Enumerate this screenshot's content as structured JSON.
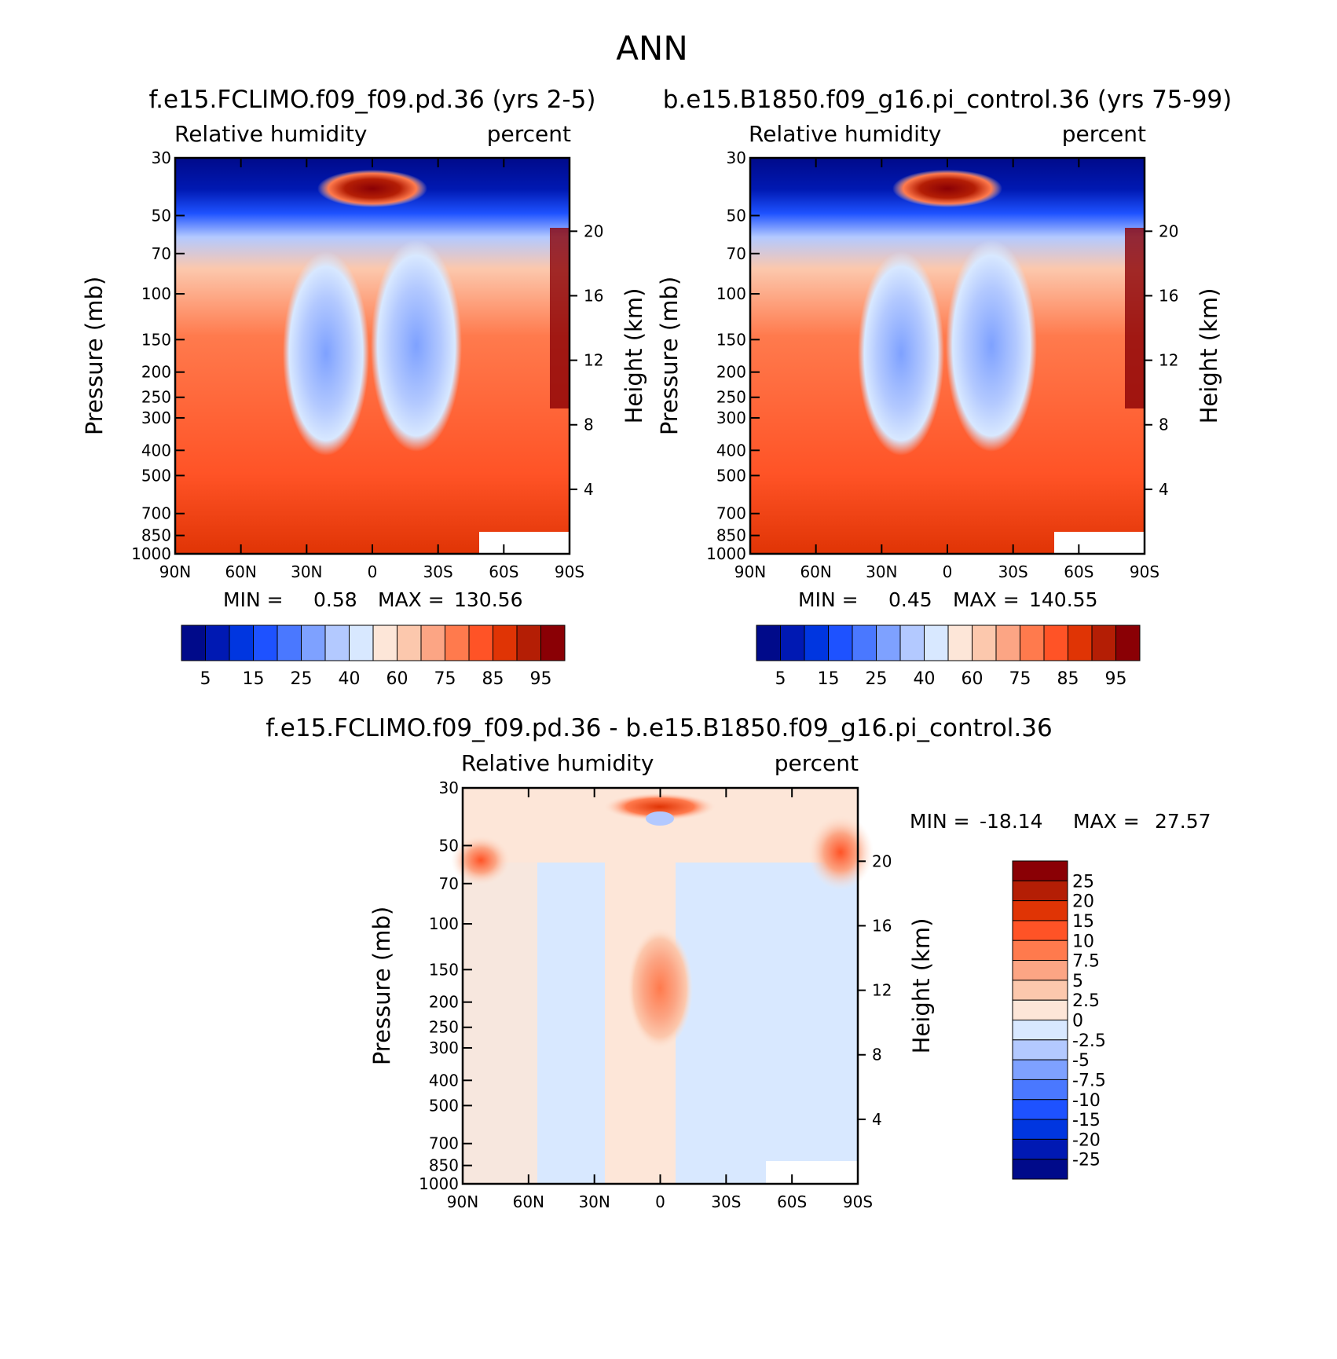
{
  "figure": {
    "title": "ANN",
    "colormap_abs": [
      "#000a8a",
      "#0019b3",
      "#0036e0",
      "#1e52ff",
      "#4a78ff",
      "#7ea1ff",
      "#b3c9ff",
      "#d8e8ff",
      "#fde6d8",
      "#fcc8ad",
      "#fca584",
      "#ff7a4d",
      "#ff5326",
      "#e03405",
      "#b41e05",
      "#8a0005"
    ],
    "colormap_diff": [
      "#000a8a",
      "#0019b3",
      "#0036e0",
      "#1e52ff",
      "#4a78ff",
      "#7ea1ff",
      "#b3c9ff",
      "#d8e8ff",
      "#fde6d8",
      "#fcc8ad",
      "#fca584",
      "#ff7a4d",
      "#ff5326",
      "#e03405",
      "#b41e05",
      "#8a0005"
    ]
  },
  "chart_data": [
    {
      "type": "heatmap",
      "title": "f.e15.FCLIMO.f09_f09.pd.36 (yrs 2-5)",
      "left_subtitle": "Relative humidity",
      "right_subtitle": "percent",
      "ylabel": "Pressure (mb)",
      "ylabel_right": "Height (km)",
      "x_ticks": [
        "90N",
        "60N",
        "30N",
        "0",
        "30S",
        "60S",
        "90S"
      ],
      "y_ticks": [
        "30",
        "50",
        "70",
        "100",
        "150",
        "200",
        "250",
        "300",
        "400",
        "500",
        "700",
        "850",
        "1000"
      ],
      "y_ticks_right": [
        "20",
        "16",
        "12",
        "8",
        "4"
      ],
      "min_text": "MIN =",
      "min_value": "0.58",
      "max_text": "MAX =",
      "max_value": "130.56",
      "colorbar_labels": [
        "5",
        "15",
        "25",
        "40",
        "60",
        "75",
        "85",
        "95"
      ]
    },
    {
      "type": "heatmap",
      "title": "b.e15.B1850.f09_g16.pi_control.36 (yrs 75-99)",
      "left_subtitle": "Relative humidity",
      "right_subtitle": "percent",
      "ylabel": "Pressure (mb)",
      "ylabel_right": "Height (km)",
      "x_ticks": [
        "90N",
        "60N",
        "30N",
        "0",
        "30S",
        "60S",
        "90S"
      ],
      "y_ticks": [
        "30",
        "50",
        "70",
        "100",
        "150",
        "200",
        "250",
        "300",
        "400",
        "500",
        "700",
        "850",
        "1000"
      ],
      "y_ticks_right": [
        "20",
        "16",
        "12",
        "8",
        "4"
      ],
      "min_text": "MIN =",
      "min_value": "0.45",
      "max_text": "MAX =",
      "max_value": "140.55",
      "colorbar_labels": [
        "5",
        "15",
        "25",
        "40",
        "60",
        "75",
        "85",
        "95"
      ]
    },
    {
      "type": "heatmap",
      "title": "f.e15.FCLIMO.f09_f09.pd.36 - b.e15.B1850.f09_g16.pi_control.36",
      "left_subtitle": "Relative humidity",
      "right_subtitle": "percent",
      "ylabel": "Pressure (mb)",
      "ylabel_right": "Height (km)",
      "x_ticks": [
        "90N",
        "60N",
        "30N",
        "0",
        "30S",
        "60S",
        "90S"
      ],
      "y_ticks": [
        "30",
        "50",
        "70",
        "100",
        "150",
        "200",
        "250",
        "300",
        "400",
        "500",
        "700",
        "850",
        "1000"
      ],
      "y_ticks_right": [
        "20",
        "16",
        "12",
        "8",
        "4"
      ],
      "min_text": "MIN =",
      "min_value": "-18.14",
      "max_text": "MAX =",
      "max_value": "27.57",
      "colorbar_labels": [
        "25",
        "20",
        "15",
        "10",
        "7.5",
        "5",
        "2.5",
        "0",
        "-2.5",
        "-5",
        "-7.5",
        "-10",
        "-15",
        "-20",
        "-25"
      ]
    }
  ]
}
